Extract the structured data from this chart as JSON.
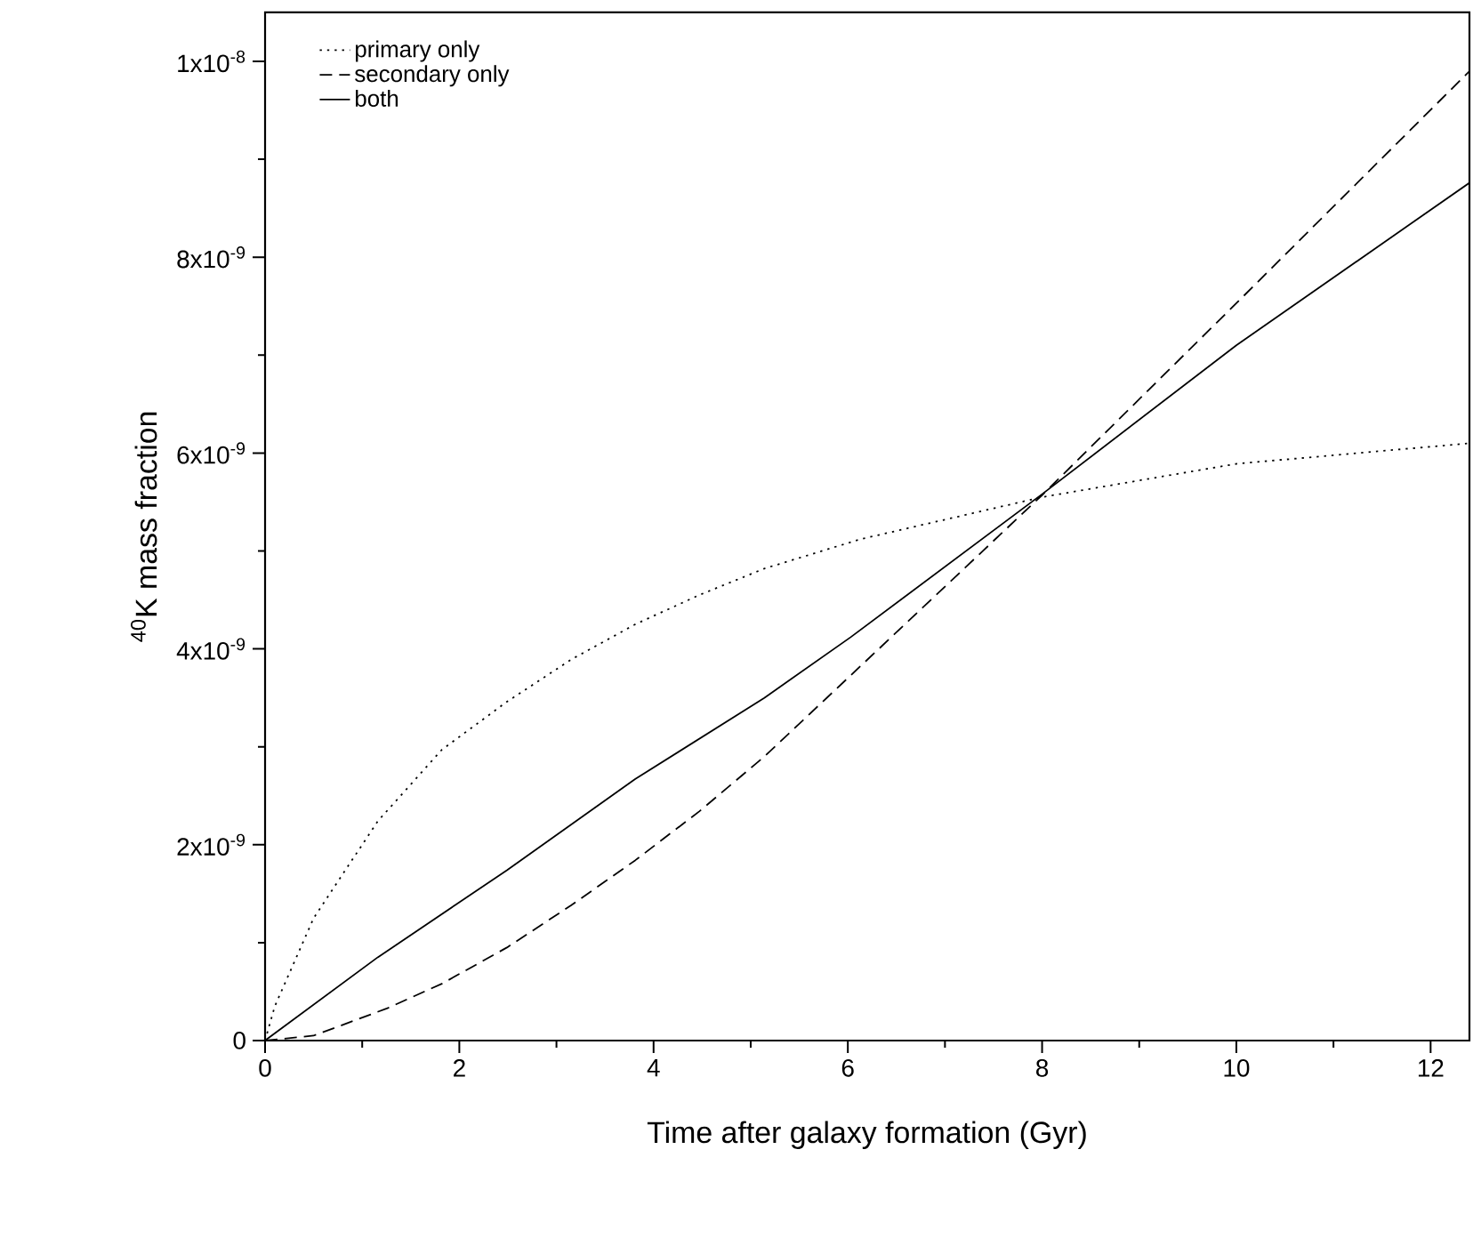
{
  "chart_data": {
    "type": "line",
    "xlabel": "Time after galaxy formation (Gyr)",
    "ylabel": "$^{40}$K mass fraction",
    "xlim": [
      0,
      12.4
    ],
    "ylim": [
      0,
      1.05e-08
    ],
    "xticks": [
      0,
      2,
      4,
      6,
      8,
      10,
      12
    ],
    "yticks": [
      0,
      {
        "value": 2e-09,
        "label": "2x10$^{-9}$"
      },
      {
        "value": 4e-09,
        "label": "4x10$^{-9}$"
      },
      {
        "value": 6e-09,
        "label": "6x10$^{-9}$"
      },
      {
        "value": 8e-09,
        "label": "8x10$^{-9}$"
      },
      {
        "value": 1e-08,
        "label": "1x10$^{-8}$"
      }
    ],
    "legend": "top left",
    "grid": false,
    "series": [
      {
        "name": "primary only",
        "color": "#000000",
        "line_style": "dotted",
        "x": [
          0,
          0.1,
          0.5,
          1.16,
          1.82,
          2.49,
          3.15,
          3.81,
          4.47,
          5.14,
          6.13,
          8,
          10,
          12.4
        ],
        "values": [
          0,
          3.5e-10,
          1.25e-09,
          2.24e-09,
          2.97e-09,
          3.46e-09,
          3.89e-09,
          4.25e-09,
          4.55e-09,
          4.82e-09,
          5.12e-09,
          5.55e-09,
          5.89e-09,
          6.1e-09
        ]
      },
      {
        "name": "secondary only",
        "color": "#000000",
        "line_style": "dashed",
        "x": [
          0,
          0.5,
          1.26,
          1.82,
          2.49,
          3.15,
          3.81,
          4.47,
          5.14,
          6.03,
          8,
          10,
          12.4
        ],
        "values": [
          0,
          5e-11,
          3.3e-10,
          5.8e-10,
          9.5e-10,
          1.38e-09,
          1.84e-09,
          2.34e-09,
          2.9e-09,
          3.73e-09,
          5.57e-09,
          7.53e-09,
          9.9e-09
        ]
      },
      {
        "name": "both",
        "color": "#000000",
        "line_style": "solid",
        "x": [
          0,
          1.16,
          2.49,
          3.81,
          5.14,
          6.03,
          8,
          10,
          12.4
        ],
        "values": [
          0,
          8.5e-10,
          1.74e-09,
          2.67e-09,
          3.5e-09,
          4.12e-09,
          5.58e-09,
          7.1e-09,
          8.76e-09
        ]
      }
    ]
  }
}
